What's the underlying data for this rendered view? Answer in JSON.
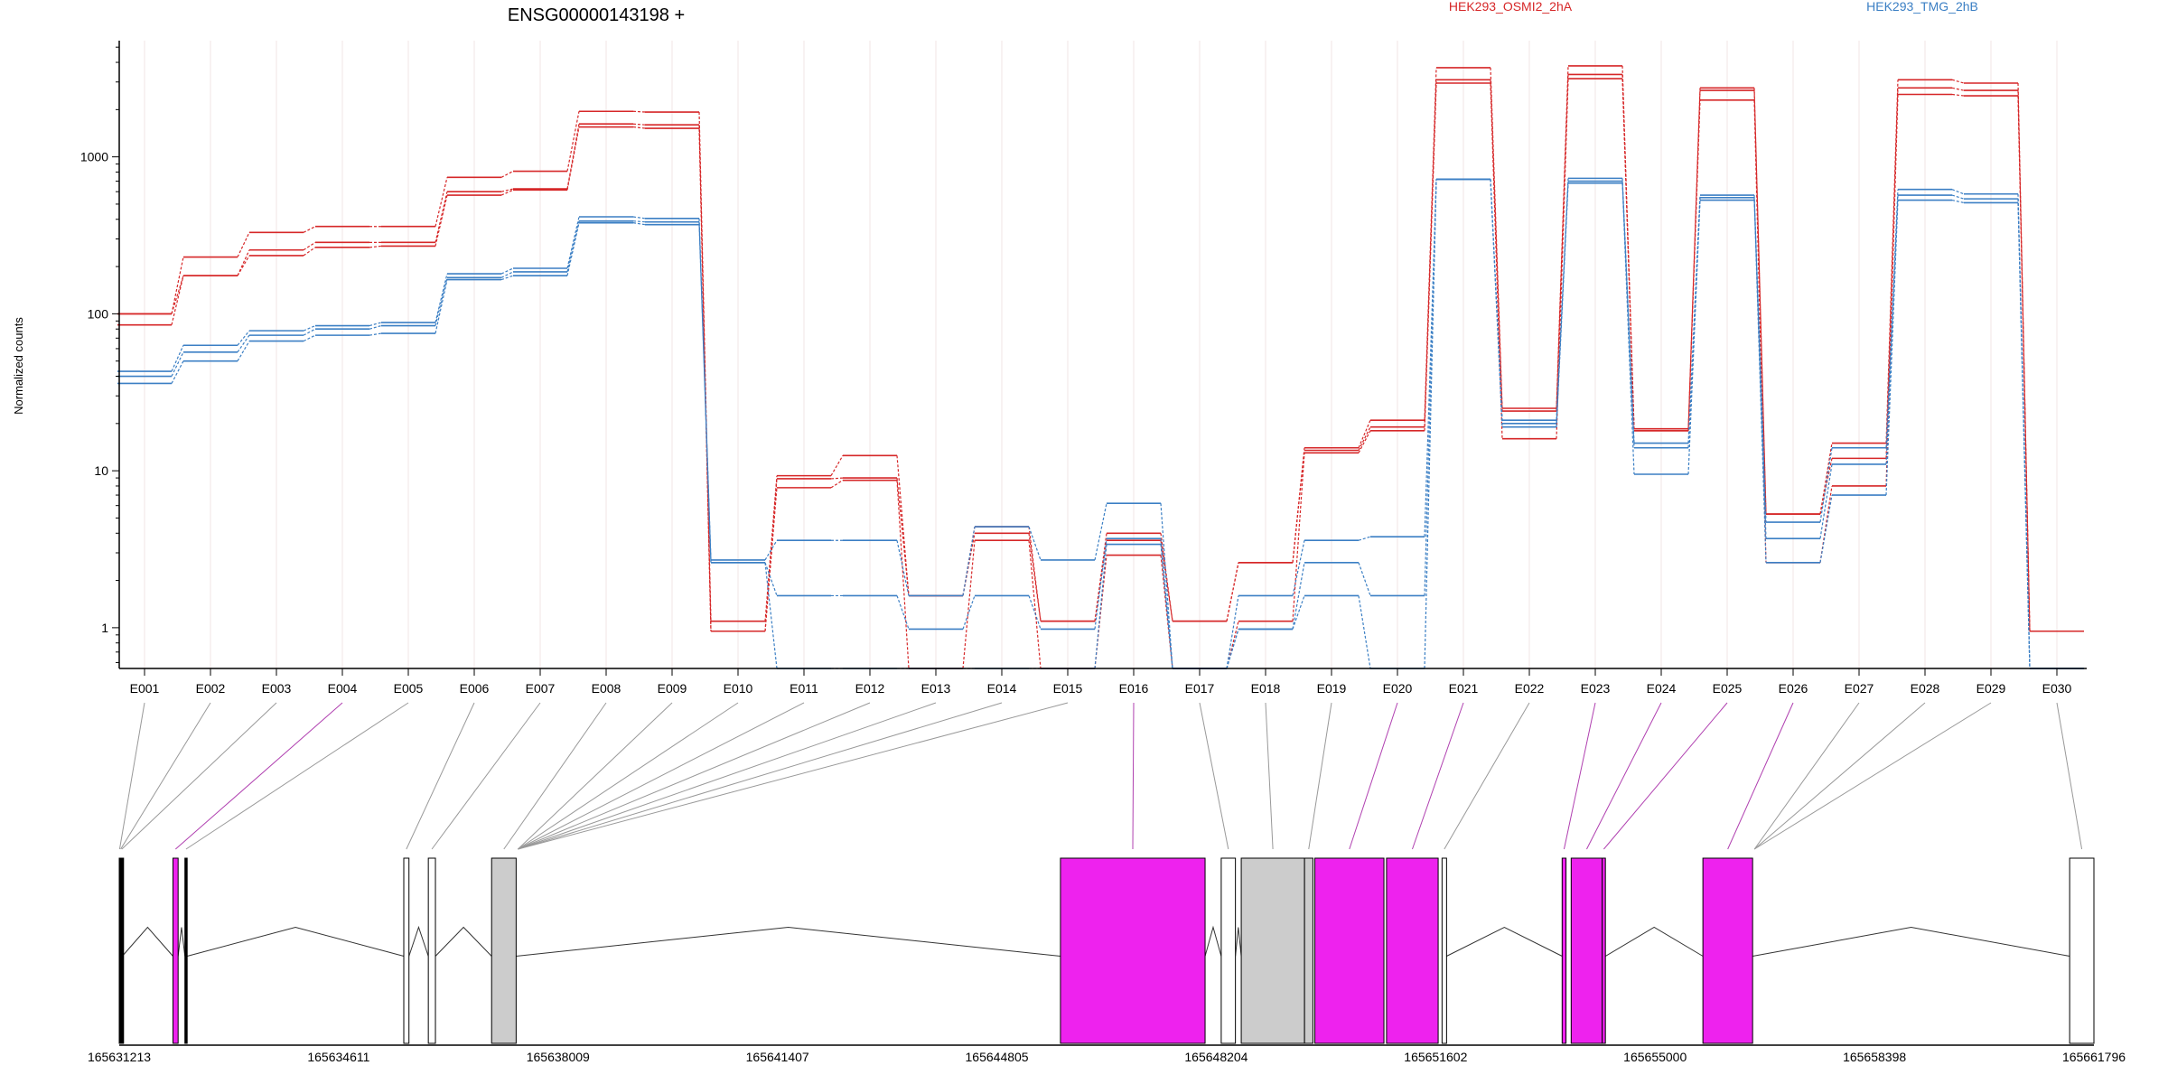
{
  "chart_data": {
    "type": "line",
    "title": "ENSG00000143198 +",
    "ylabel": "Normalized counts",
    "yscale": "log",
    "ylim": [
      0.55,
      5500
    ],
    "y_ticks": [
      {
        "value": 1,
        "label": "1"
      },
      {
        "value": 10,
        "label": "10"
      },
      {
        "value": 100,
        "label": "100"
      },
      {
        "value": 1000,
        "label": "1000"
      }
    ],
    "categories": [
      "E001",
      "E002",
      "E003",
      "E004",
      "E005",
      "E006",
      "E007",
      "E008",
      "E009",
      "E010",
      "E011",
      "E012",
      "E013",
      "E014",
      "E015",
      "E016",
      "E017",
      "E018",
      "E019",
      "E020",
      "E021",
      "E022",
      "E023",
      "E024",
      "E025",
      "E026",
      "E027",
      "E028",
      "E029",
      "E030"
    ],
    "legend_position": "top",
    "grid": "vertical",
    "colors": {
      "red": "#d62728",
      "blue": "#3b7fc4",
      "exon_highlight": "#ee22ee",
      "exon_grey": "#cccccc"
    },
    "groups": [
      {
        "name": "HEK293_OSMI2_2hA",
        "color": "#d62728"
      },
      {
        "name": "HEK293_TMG_2hB",
        "color": "#3b7fc4"
      }
    ],
    "series": [
      {
        "group": 0,
        "values": [
          100,
          230,
          330,
          360,
          360,
          740,
          810,
          1950,
          1930,
          1.1,
          9.3,
          12.5,
          1.6,
          4.4,
          1.1,
          4.0,
          1.1,
          2.6,
          14,
          21,
          3700,
          25,
          3800,
          18.5,
          2750,
          5.3,
          15,
          3100,
          2950,
          0.95
        ]
      },
      {
        "group": 0,
        "values": [
          100,
          175,
          255,
          285,
          285,
          600,
          625,
          1620,
          1600,
          0.95,
          8.9,
          9.0,
          1.6,
          4.0,
          1.1,
          3.6,
          1.1,
          2.6,
          13.5,
          19,
          3100,
          24,
          3350,
          18,
          2650,
          5.3,
          12,
          2750,
          2650,
          0.95
        ]
      },
      {
        "group": 0,
        "values": [
          85,
          175,
          235,
          265,
          270,
          570,
          615,
          1550,
          1520,
          0.95,
          7.8,
          8.7,
          0.55,
          3.6,
          0.55,
          2.9,
          0.55,
          1.1,
          13,
          18,
          2950,
          16,
          3150,
          18,
          2300,
          2.6,
          8,
          2500,
          2450,
          0.95
        ]
      },
      {
        "group": 1,
        "values": [
          43,
          63,
          78,
          84,
          88,
          180,
          195,
          415,
          405,
          2.7,
          3.6,
          3.6,
          1.6,
          4.4,
          2.7,
          6.2,
          0.55,
          1.6,
          3.6,
          3.8,
          720,
          21,
          730,
          15,
          570,
          4.7,
          14,
          620,
          580,
          0.55
        ]
      },
      {
        "group": 1,
        "values": [
          40,
          57,
          73,
          80,
          84,
          170,
          185,
          390,
          385,
          2.6,
          1.6,
          1.6,
          0.98,
          1.6,
          0.98,
          3.7,
          0.55,
          0.98,
          2.6,
          1.6,
          720,
          20,
          700,
          14,
          550,
          3.7,
          11,
          570,
          540,
          0.55
        ]
      },
      {
        "group": 1,
        "values": [
          36,
          50,
          67,
          73,
          75,
          165,
          175,
          380,
          370,
          2.6,
          0.55,
          0.55,
          0.55,
          0.55,
          0.55,
          3.4,
          0.55,
          0.98,
          1.6,
          0.55,
          720,
          19,
          680,
          9.5,
          530,
          2.6,
          7,
          530,
          510,
          0.55
        ]
      }
    ],
    "genomic_axis": {
      "range": [
        165631213,
        165661796
      ],
      "tick_labels": [
        "165631213",
        "165634611",
        "165638009",
        "165641407",
        "165644805",
        "165648204",
        "165651602",
        "165655000",
        "165658398",
        "165661796"
      ]
    },
    "exon_tracks": [
      {
        "id": "E001",
        "start": 165631213,
        "end": 165631225,
        "color": "black"
      },
      {
        "id": "E002",
        "start": 165631225,
        "end": 165631245,
        "color": "black"
      },
      {
        "id": "E003",
        "start": 165631245,
        "end": 165631260,
        "color": "black"
      },
      {
        "id": "E004",
        "start": 165632045,
        "end": 165632125,
        "color": "magenta"
      },
      {
        "id": "E005",
        "start": 165632230,
        "end": 165632265,
        "color": "black"
      },
      {
        "id": "E006",
        "start": 165635620,
        "end": 165635700,
        "color": "white"
      },
      {
        "id": "E007",
        "start": 165636000,
        "end": 165636110,
        "color": "white"
      },
      {
        "id": "E008",
        "start": 165636980,
        "end": 165637360,
        "color": "grey"
      },
      {
        "id": "E016",
        "start": 165645790,
        "end": 165648030,
        "color": "magenta"
      },
      {
        "id": "E017",
        "start": 165648280,
        "end": 165648500,
        "color": "white"
      },
      {
        "id": "E018",
        "start": 165648590,
        "end": 165649570,
        "color": "grey"
      },
      {
        "id": "E019",
        "start": 165649570,
        "end": 165649700,
        "color": "grey"
      },
      {
        "id": "E020",
        "start": 165649730,
        "end": 165650800,
        "color": "magenta"
      },
      {
        "id": "E021",
        "start": 165650840,
        "end": 165651640,
        "color": "magenta"
      },
      {
        "id": "E022",
        "start": 165651700,
        "end": 165651770,
        "color": "white"
      },
      {
        "id": "E023",
        "start": 165653560,
        "end": 165653620,
        "color": "magenta"
      },
      {
        "id": "E024",
        "start": 165653700,
        "end": 165654180,
        "color": "magenta"
      },
      {
        "id": "E025",
        "start": 165654180,
        "end": 165654230,
        "color": "magenta"
      },
      {
        "id": "E026",
        "start": 165655740,
        "end": 165656510,
        "color": "magenta"
      },
      {
        "id": "E030",
        "start": 165661420,
        "end": 165661796,
        "color": "white"
      }
    ]
  }
}
